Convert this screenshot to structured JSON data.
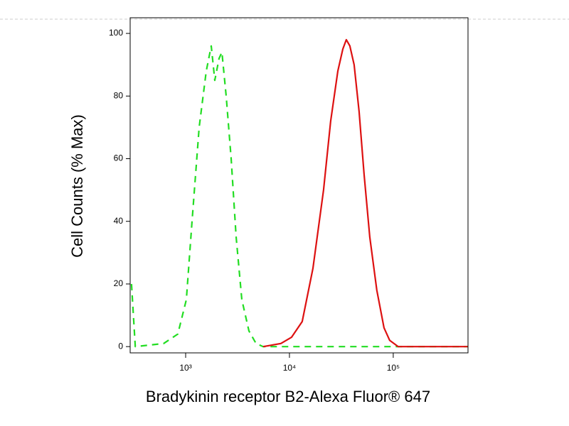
{
  "chart_data": {
    "type": "line",
    "xlabel": "Bradykinin receptor B2-Alexa Fluor® 647",
    "ylabel": "Cell Counts (% Max)",
    "xscale": "log",
    "xlim": [
      292,
      525000
    ],
    "ylim": [
      -2,
      105
    ],
    "xticks": [
      {
        "value": 1000,
        "label": "10³"
      },
      {
        "value": 10000,
        "label": "10⁴"
      },
      {
        "value": 100000,
        "label": "10⁵"
      }
    ],
    "yticks": [
      0,
      20,
      40,
      60,
      80,
      100
    ],
    "series": [
      {
        "color": "#22dd22",
        "dash": true,
        "x": [
          301,
          327,
          614,
          841,
          1016,
          1153,
          1349,
          1580,
          1765,
          1909,
          2099,
          2234,
          2456,
          2743,
          3064,
          3475,
          4070,
          4764,
          5580,
          19700,
          520000
        ],
        "values": [
          20,
          0,
          1,
          4,
          15,
          40,
          70,
          88,
          96,
          85,
          92,
          94,
          80,
          60,
          35,
          15,
          5,
          1,
          0,
          0,
          0
        ]
      },
      {
        "color": "#dd1111",
        "dash": false,
        "x": [
          5580,
          8270,
          10490,
          13280,
          16830,
          21320,
          24950,
          29240,
          32660,
          35320,
          38210,
          41980,
          46880,
          52360,
          59430,
          69500,
          81470,
          92470,
          111700,
          520000
        ],
        "values": [
          0,
          1,
          3,
          8,
          25,
          50,
          72,
          88,
          95,
          98,
          96,
          90,
          75,
          55,
          35,
          18,
          6,
          2,
          0,
          0
        ]
      }
    ]
  }
}
